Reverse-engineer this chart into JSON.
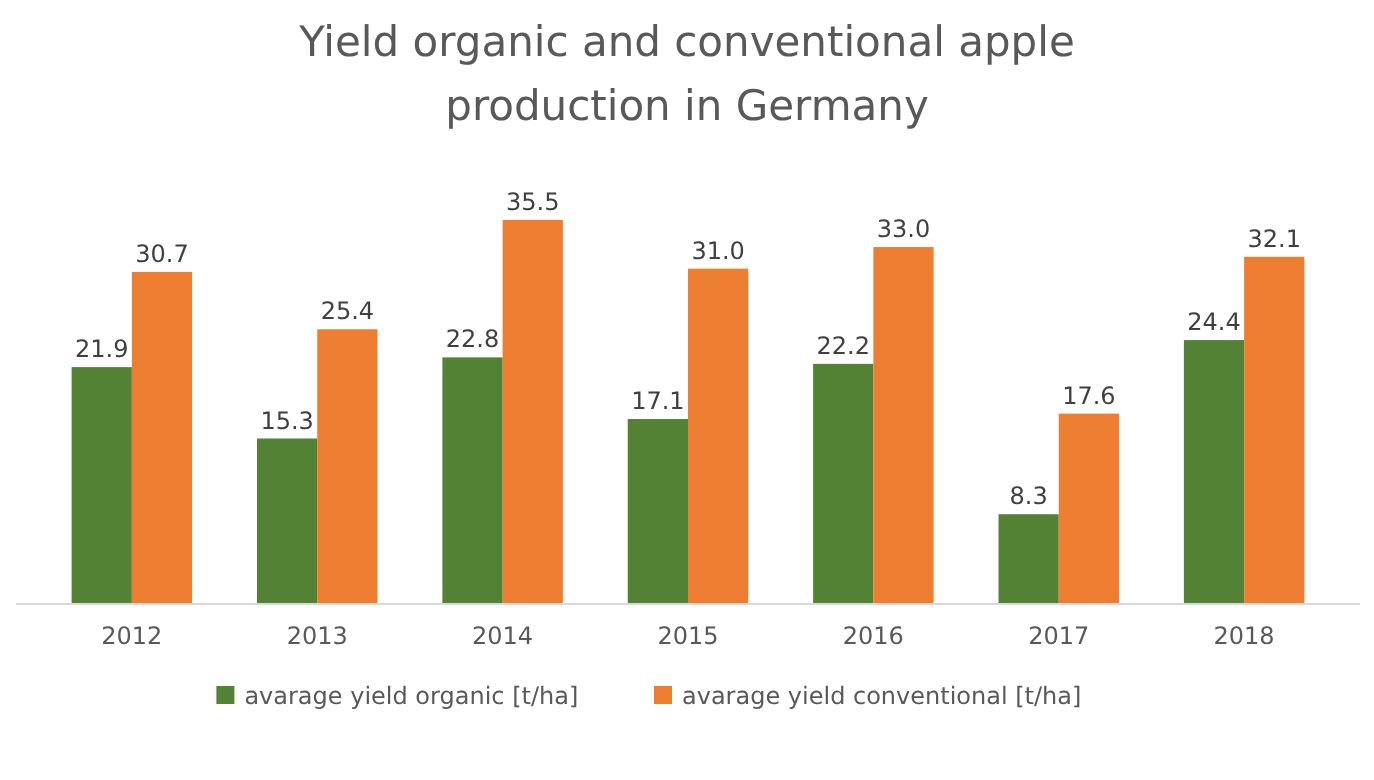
{
  "chart_data": {
    "type": "bar",
    "title": "Yield organic and conventional apple production in Germany",
    "categories": [
      "2012",
      "2013",
      "2014",
      "2015",
      "2016",
      "2017",
      "2018"
    ],
    "series": [
      {
        "name": "avarage yield organic [t/ha]",
        "color": "#548235",
        "values": [
          21.9,
          15.3,
          22.8,
          17.1,
          22.2,
          8.3,
          24.4
        ],
        "value_labels": [
          "21.9",
          "15.3",
          "22.8",
          "17.1",
          "22.2",
          "8.3",
          "24.4"
        ]
      },
      {
        "name": "avarage yield conventional [t/ha]",
        "color": "#ed7d31",
        "values": [
          30.7,
          25.4,
          35.5,
          31.0,
          33.0,
          17.6,
          32.1
        ],
        "value_labels": [
          "30.7",
          "25.4",
          "35.5",
          "31.0",
          "33.0",
          "17.6",
          "32.1"
        ]
      }
    ],
    "legend": "bottom"
  }
}
